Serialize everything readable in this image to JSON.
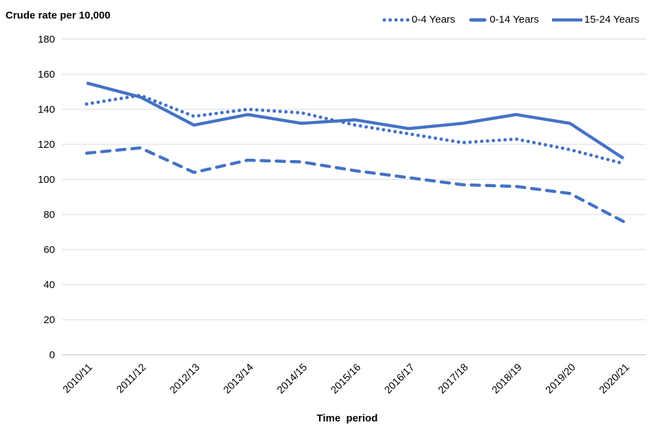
{
  "header": {
    "title": "Crude rate per 10,000"
  },
  "chart_data": {
    "type": "line",
    "title": "Crude rate per 10,000",
    "xlabel": "Time period",
    "ylabel": "Crude rate per 10,000",
    "ylim": [
      0,
      180
    ],
    "ytick_step": 20,
    "grid": true,
    "legend_position": "top-right",
    "line_color": "#4472C4",
    "gridline_color": "#D9D9D9",
    "axisline_color": "#BFBFBF",
    "categories": [
      "2010/11",
      "2011/12",
      "2012/13",
      "2013/14",
      "2014/15",
      "2015/16",
      "2016/17",
      "2017/18",
      "2018/19",
      "2019/20",
      "2020/21"
    ],
    "series": [
      {
        "name": "0-4 Years",
        "style": "dotted",
        "values": [
          143,
          148,
          136,
          140,
          138,
          131,
          126,
          121,
          123,
          117,
          109
        ]
      },
      {
        "name": "0-14 Years",
        "style": "dashed",
        "values": [
          115,
          118,
          104,
          111,
          110,
          105,
          101,
          97,
          96,
          92,
          76
        ]
      },
      {
        "name": "15-24 Years",
        "style": "solid",
        "values": [
          155,
          147,
          131,
          137,
          132,
          134,
          129,
          132,
          137,
          132,
          112
        ]
      }
    ]
  }
}
